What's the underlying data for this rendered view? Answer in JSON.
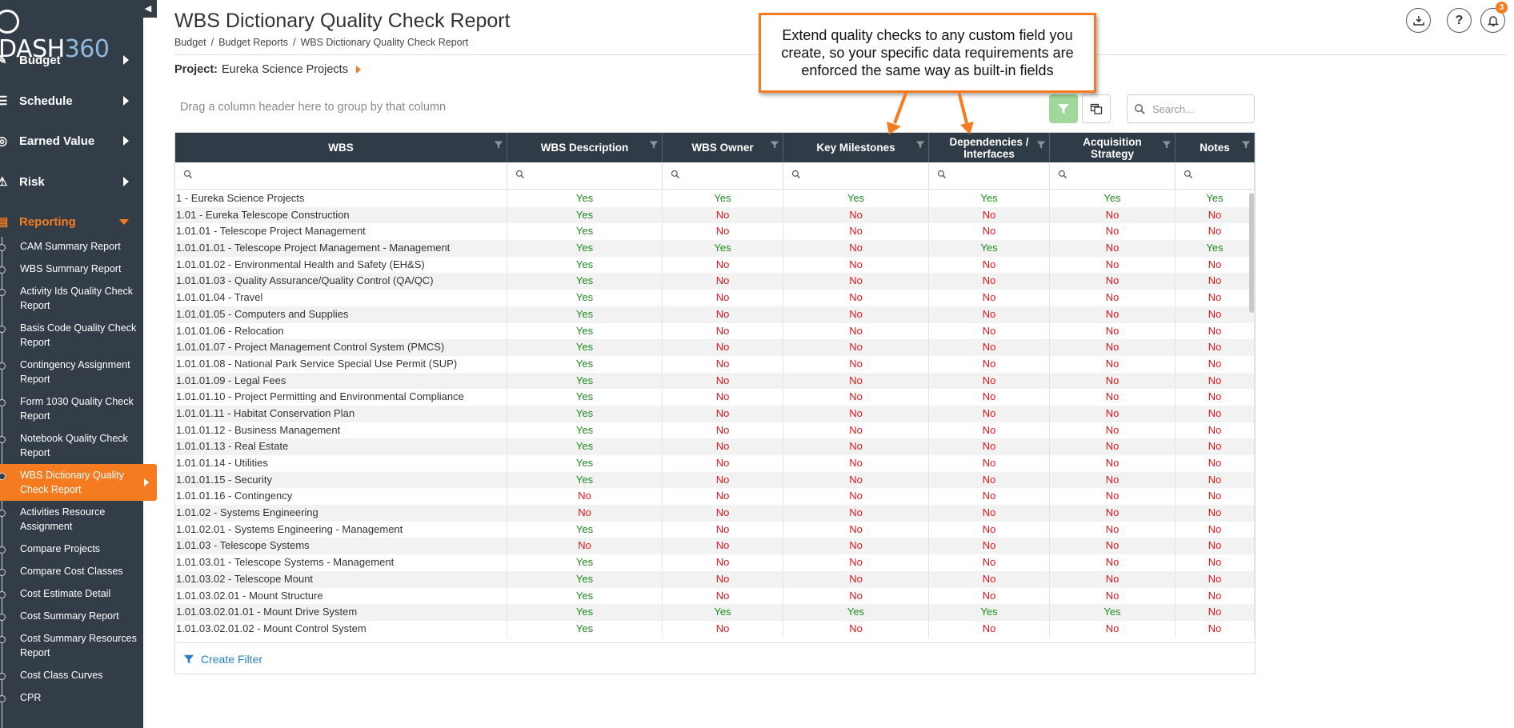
{
  "app": {
    "logo_text": "DASH",
    "logo_num": "360"
  },
  "sidebar": {
    "main_items": [
      {
        "label": "Budget",
        "icon": "edit-icon"
      },
      {
        "label": "Schedule",
        "icon": "list-icon"
      },
      {
        "label": "Earned Value",
        "icon": "target-icon"
      },
      {
        "label": "Risk",
        "icon": "warning-icon"
      },
      {
        "label": "Reporting",
        "icon": "report-icon"
      }
    ],
    "sub_items": [
      "CAM Summary Report",
      "WBS Summary Report",
      "Activity Ids Quality Check Report",
      "Basis Code Quality Check Report",
      "Contingency Assignment Report",
      "Form 1030 Quality Check Report",
      "Notebook Quality Check Report",
      "WBS Dictionary Quality Check Report",
      "Activities Resource Assignment",
      "Compare Projects",
      "Compare Cost Classes",
      "Cost Estimate Detail",
      "Cost Summary Report",
      "Cost Summary Resources Report",
      "Cost Class Curves",
      "CPR"
    ],
    "active_sub_index": 7
  },
  "header": {
    "title": "WBS Dictionary Quality Check Report",
    "breadcrumb": [
      "Budget",
      "Budget Reports",
      "WBS Dictionary Quality Check Report"
    ],
    "breadcrumb_sep": "/",
    "project_label": "Project:",
    "project_name": "Eureka Science Projects",
    "notification_count": "3"
  },
  "toolbar": {
    "group_hint": "Drag a column header here to group by that column",
    "search_placeholder": "Search..."
  },
  "callout": {
    "text": "Extend quality checks to any custom field you create, so your specific data requirements are enforced the same way as built-in fields"
  },
  "table": {
    "columns": [
      "WBS",
      "WBS Description",
      "WBS Owner",
      "Key Milestones",
      "Dependencies / Interfaces",
      "Acquisition Strategy",
      "Notes"
    ],
    "rows": [
      {
        "wbs": "1 - Eureka Science Projects",
        "v": [
          "Yes",
          "Yes",
          "Yes",
          "Yes",
          "Yes",
          "Yes"
        ]
      },
      {
        "wbs": "1.01 - Eureka Telescope Construction",
        "v": [
          "Yes",
          "No",
          "No",
          "No",
          "No",
          "No"
        ]
      },
      {
        "wbs": "1.01.01 - Telescope Project Management",
        "v": [
          "Yes",
          "No",
          "No",
          "No",
          "No",
          "No"
        ]
      },
      {
        "wbs": "1.01.01.01 - Telescope Project Management - Management",
        "v": [
          "Yes",
          "Yes",
          "No",
          "Yes",
          "No",
          "Yes"
        ]
      },
      {
        "wbs": "1.01.01.02 - Environmental Health and Safety (EH&S)",
        "v": [
          "Yes",
          "No",
          "No",
          "No",
          "No",
          "No"
        ]
      },
      {
        "wbs": "1.01.01.03 - Quality Assurance/Quality Control (QA/QC)",
        "v": [
          "Yes",
          "No",
          "No",
          "No",
          "No",
          "No"
        ]
      },
      {
        "wbs": "1.01.01.04 - Travel",
        "v": [
          "Yes",
          "No",
          "No",
          "No",
          "No",
          "No"
        ]
      },
      {
        "wbs": "1.01.01.05 - Computers and Supplies",
        "v": [
          "Yes",
          "No",
          "No",
          "No",
          "No",
          "No"
        ]
      },
      {
        "wbs": "1.01.01.06 - Relocation",
        "v": [
          "Yes",
          "No",
          "No",
          "No",
          "No",
          "No"
        ]
      },
      {
        "wbs": "1.01.01.07 - Project Management Control System (PMCS)",
        "v": [
          "Yes",
          "No",
          "No",
          "No",
          "No",
          "No"
        ]
      },
      {
        "wbs": "1.01.01.08 - National Park Service Special Use Permit (SUP)",
        "v": [
          "Yes",
          "No",
          "No",
          "No",
          "No",
          "No"
        ]
      },
      {
        "wbs": "1.01.01.09 - Legal Fees",
        "v": [
          "Yes",
          "No",
          "No",
          "No",
          "No",
          "No"
        ]
      },
      {
        "wbs": "1.01.01.10 - Project Permitting and Environmental Compliance",
        "v": [
          "Yes",
          "No",
          "No",
          "No",
          "No",
          "No"
        ]
      },
      {
        "wbs": "1.01.01.11 - Habitat Conservation Plan",
        "v": [
          "Yes",
          "No",
          "No",
          "No",
          "No",
          "No"
        ]
      },
      {
        "wbs": "1.01.01.12 - Business Management",
        "v": [
          "Yes",
          "No",
          "No",
          "No",
          "No",
          "No"
        ]
      },
      {
        "wbs": "1.01.01.13 - Real Estate",
        "v": [
          "Yes",
          "No",
          "No",
          "No",
          "No",
          "No"
        ]
      },
      {
        "wbs": "1.01.01.14 - Utilities",
        "v": [
          "Yes",
          "No",
          "No",
          "No",
          "No",
          "No"
        ]
      },
      {
        "wbs": "1.01.01.15 - Security",
        "v": [
          "Yes",
          "No",
          "No",
          "No",
          "No",
          "No"
        ]
      },
      {
        "wbs": "1.01.01.16 - Contingency",
        "v": [
          "No",
          "No",
          "No",
          "No",
          "No",
          "No"
        ]
      },
      {
        "wbs": "1.01.02 - Systems Engineering",
        "v": [
          "No",
          "No",
          "No",
          "No",
          "No",
          "No"
        ]
      },
      {
        "wbs": "1.01.02.01 - Systems Engineering - Management",
        "v": [
          "Yes",
          "No",
          "No",
          "No",
          "No",
          "No"
        ]
      },
      {
        "wbs": "1.01.03 - Telescope Systems",
        "v": [
          "No",
          "No",
          "No",
          "No",
          "No",
          "No"
        ]
      },
      {
        "wbs": "1.01.03.01 - Telescope Systems - Management",
        "v": [
          "Yes",
          "No",
          "No",
          "No",
          "No",
          "No"
        ]
      },
      {
        "wbs": "1.01.03.02 - Telescope Mount",
        "v": [
          "Yes",
          "No",
          "No",
          "No",
          "No",
          "No"
        ]
      },
      {
        "wbs": "1.01.03.02.01 - Mount Structure",
        "v": [
          "Yes",
          "No",
          "No",
          "No",
          "No",
          "No"
        ]
      },
      {
        "wbs": "1.01.03.02.01.01 - Mount Drive System",
        "v": [
          "Yes",
          "Yes",
          "Yes",
          "Yes",
          "Yes",
          "No"
        ]
      },
      {
        "wbs": "1.01.03.02.01.02 - Mount Control System",
        "v": [
          "Yes",
          "No",
          "No",
          "No",
          "No",
          "No"
        ]
      }
    ],
    "footer_label": "Create Filter"
  },
  "colors": {
    "accent": "#f47b20",
    "sidebar": "#333d47",
    "header": "#2f3b46",
    "yes": "#1e8a1e",
    "no": "#e0161b",
    "link": "#2a7fc4"
  }
}
